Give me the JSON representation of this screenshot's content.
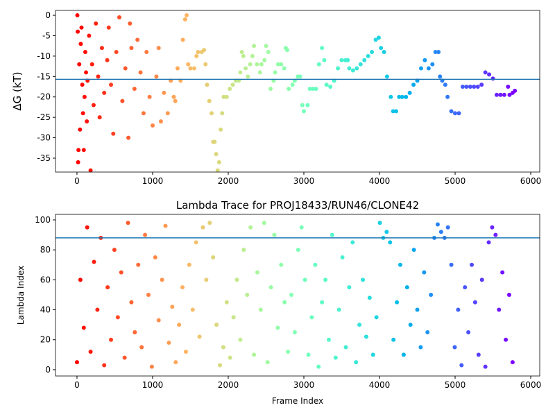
{
  "chart_data": [
    {
      "type": "scatter",
      "ylabel": "ΔG (kT)",
      "colormap": "rainbow_r",
      "xlim": [
        -284,
        6119
      ],
      "xticks": [
        0,
        1000,
        2000,
        3000,
        4000,
        5000,
        6000
      ],
      "ylim": [
        -38.4,
        1.2
      ],
      "yticks": [
        0,
        -5,
        -10,
        -15,
        -20,
        -25,
        -30,
        -35
      ],
      "hline": -15.7,
      "hline_color": "#1f77b4",
      "x": [
        5,
        10,
        15,
        20,
        30,
        40,
        50,
        60,
        70,
        80,
        90,
        100,
        110,
        120,
        130,
        140,
        160,
        180,
        200,
        220,
        250,
        280,
        300,
        330,
        360,
        400,
        420,
        450,
        480,
        520,
        560,
        600,
        640,
        680,
        700,
        720,
        760,
        800,
        840,
        880,
        920,
        960,
        1000,
        1050,
        1080,
        1110,
        1150,
        1200,
        1240,
        1280,
        1300,
        1330,
        1370,
        1400,
        1430,
        1450,
        1470,
        1500,
        1550,
        1580,
        1600,
        1650,
        1680,
        1700,
        1720,
        1750,
        1780,
        1800,
        1820,
        1840,
        1860,
        1880,
        1900,
        1920,
        1940,
        1980,
        2020,
        2060,
        2100,
        2140,
        2160,
        2180,
        2200,
        2230,
        2260,
        2290,
        2320,
        2340,
        2380,
        2420,
        2440,
        2480,
        2500,
        2530,
        2560,
        2600,
        2620,
        2660,
        2700,
        2740,
        2760,
        2780,
        2800,
        2850,
        2880,
        2920,
        2950,
        2980,
        3000,
        3050,
        3080,
        3120,
        3160,
        3200,
        3240,
        3270,
        3300,
        3350,
        3400,
        3450,
        3500,
        3550,
        3580,
        3600,
        3650,
        3700,
        3750,
        3800,
        3850,
        3900,
        3950,
        3990,
        4020,
        4060,
        4100,
        4150,
        4180,
        4220,
        4260,
        4300,
        4350,
        4400,
        4450,
        4500,
        4550,
        4600,
        4650,
        4700,
        4740,
        4780,
        4800,
        4830,
        4870,
        4900,
        4950,
        5000,
        5050,
        5100,
        5150,
        5200,
        5250,
        5300,
        5350,
        5400,
        5450,
        5500,
        5550,
        5600,
        5650,
        5700,
        5720,
        5760,
        5790
      ],
      "values": [
        0,
        -4,
        -36,
        -33,
        -12,
        -28,
        -7,
        -3,
        -17,
        -24,
        -33,
        -20,
        -9,
        -14,
        -26,
        -16,
        -5,
        -38,
        -12,
        -22,
        -2,
        -15,
        -25,
        -8,
        -19,
        -11,
        -3,
        -17,
        -29,
        -9,
        -0.5,
        -21,
        -13,
        -30,
        -2,
        -8,
        -18,
        -6,
        -14,
        -24,
        -9,
        -20,
        -27,
        -15,
        -8,
        -26,
        -19,
        -24,
        -16,
        -20,
        -21,
        -13,
        -16,
        -6,
        -1,
        0,
        -12,
        -13,
        -13,
        -10,
        -9,
        -9,
        -8.5,
        -12,
        -17,
        -21,
        -24,
        -31,
        -31,
        -34,
        -38,
        -36,
        -28,
        -24,
        -20,
        -20,
        -18,
        -17,
        -16,
        -16,
        -14,
        -9,
        -10,
        -13,
        -15,
        -12,
        -10,
        -7.5,
        -12,
        -14,
        -12,
        -11,
        -7.5,
        -9,
        -18,
        -16,
        -14,
        -12,
        -12,
        -13,
        -8,
        -8.5,
        -18,
        -17,
        -16,
        -15,
        -15,
        -22,
        -23.5,
        -22,
        -18,
        -18,
        -18,
        -12,
        -8,
        -11,
        -17,
        -17.5,
        -16,
        -13,
        -11,
        -11,
        -11,
        -13,
        -13.5,
        -13,
        -12,
        -11,
        -10,
        -9,
        -6,
        -5.5,
        -8,
        -9,
        -15,
        -20,
        -23.5,
        -23.5,
        -20,
        -20,
        -20,
        -19,
        -17,
        -16,
        -13,
        -11,
        -13,
        -12,
        -9,
        -9,
        -15,
        -16,
        -17,
        -20,
        -23.5,
        -24,
        -24,
        -17.5,
        -17.5,
        -17.5,
        -17.5,
        -17.5,
        -17,
        -14,
        -14.5,
        -15.5,
        -19.5,
        -19.5,
        -19.5,
        -17.5,
        -19.5,
        -19,
        -18.5
      ]
    },
    {
      "type": "scatter",
      "title": "Lambda Trace for PROJ18433/RUN46/CLONE42",
      "xlabel": "Frame Index",
      "ylabel": "Lambda Index",
      "colormap": "rainbow_r",
      "xlim": [
        -284,
        6119
      ],
      "xticks": [
        0,
        1000,
        2000,
        3000,
        4000,
        5000,
        6000
      ],
      "ylim": [
        -4.2,
        103.7
      ],
      "yticks": [
        0,
        20,
        40,
        60,
        80,
        100
      ],
      "hline": 88,
      "hline_color": "#1f77b4",
      "x": [
        0,
        45,
        90,
        135,
        180,
        225,
        270,
        315,
        360,
        405,
        450,
        495,
        540,
        585,
        630,
        675,
        720,
        765,
        810,
        855,
        900,
        945,
        990,
        1035,
        1080,
        1125,
        1170,
        1215,
        1260,
        1305,
        1350,
        1395,
        1440,
        1485,
        1530,
        1575,
        1620,
        1665,
        1710,
        1755,
        1800,
        1845,
        1890,
        1935,
        1980,
        2025,
        2070,
        2115,
        2160,
        2205,
        2250,
        2295,
        2340,
        2385,
        2430,
        2475,
        2520,
        2565,
        2610,
        2655,
        2700,
        2745,
        2790,
        2835,
        2880,
        2925,
        2970,
        3015,
        3060,
        3105,
        3150,
        3195,
        3240,
        3285,
        3330,
        3375,
        3420,
        3465,
        3510,
        3555,
        3600,
        3645,
        3690,
        3735,
        3780,
        3825,
        3870,
        3915,
        3960,
        4005,
        4050,
        4095,
        4140,
        4185,
        4230,
        4275,
        4320,
        4365,
        4410,
        4455,
        4500,
        4545,
        4590,
        4635,
        4680,
        4725,
        4770,
        4815,
        4860,
        4905,
        4950,
        4995,
        5040,
        5085,
        5130,
        5175,
        5220,
        5265,
        5310,
        5355,
        5400,
        5445,
        5490,
        5535,
        5580,
        5625,
        5670,
        5715,
        5760
      ],
      "values": [
        5,
        60,
        28,
        95,
        12,
        72,
        40,
        88,
        3,
        55,
        20,
        80,
        35,
        65,
        8,
        98,
        45,
        25,
        70,
        15,
        90,
        50,
        2,
        75,
        33,
        60,
        96,
        18,
        42,
        5,
        30,
        55,
        12,
        70,
        40,
        85,
        22,
        95,
        60,
        98,
        75,
        30,
        3,
        15,
        45,
        8,
        35,
        60,
        20,
        80,
        50,
        95,
        10,
        65,
        40,
        98,
        5,
        55,
        90,
        28,
        70,
        45,
        12,
        50,
        25,
        80,
        95,
        60,
        10,
        35,
        70,
        2,
        45,
        60,
        20,
        90,
        8,
        40,
        75,
        15,
        55,
        85,
        5,
        30,
        60,
        22,
        48,
        10,
        35,
        98,
        88,
        92,
        85,
        20,
        45,
        70,
        10,
        55,
        30,
        80,
        40,
        15,
        65,
        25,
        50,
        88,
        97,
        92,
        88,
        95,
        70,
        15,
        40,
        3,
        55,
        25,
        70,
        45,
        10,
        60,
        2,
        85,
        95,
        90,
        40,
        65,
        20,
        50,
        5
      ]
    }
  ]
}
